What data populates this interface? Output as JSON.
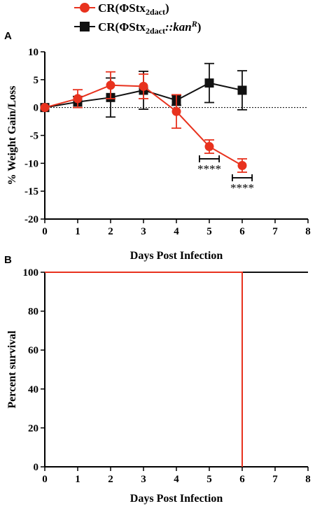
{
  "colors": {
    "red": "#e8321e",
    "black": "#111111"
  },
  "legend": {
    "placement": "top",
    "items": [
      {
        "marker": "circle",
        "color": "#e8321e",
        "prefix": "CR(ΦStx",
        "sub": "2dact",
        "suffix": ")",
        "sup": ""
      },
      {
        "marker": "square",
        "color": "#111111",
        "prefix": "CR(ΦStx",
        "sub": "2dact",
        "suffix": "::kan",
        "sup": "R",
        "close": ")"
      }
    ]
  },
  "chart_data": [
    {
      "panel": "A",
      "type": "line",
      "xlabel": "Days Post Infection",
      "ylabel": "% Weight Gain/Loss",
      "xlim": [
        0,
        8
      ],
      "ylim": [
        -20,
        10
      ],
      "xticks": [
        0,
        1,
        2,
        3,
        4,
        5,
        6,
        7,
        8
      ],
      "yticks": [
        10,
        5,
        0,
        -5,
        -10,
        -15,
        -20
      ],
      "grid": false,
      "reference_line_y": 0,
      "series": [
        {
          "name": "CR(ΦStx2dact)",
          "color": "#e8321e",
          "marker": "circle",
          "x": [
            0,
            1,
            2,
            3,
            4,
            5,
            6
          ],
          "y": [
            0,
            1.6,
            4.0,
            3.8,
            -0.7,
            -7.0,
            -10.4
          ],
          "err": [
            0,
            1.6,
            2.4,
            2.2,
            3.0,
            1.2,
            1.2
          ]
        },
        {
          "name": "CR(ΦStx2dact::kanR)",
          "color": "#111111",
          "marker": "square",
          "x": [
            0,
            1,
            2,
            3,
            4,
            5,
            6
          ],
          "y": [
            0,
            1.0,
            1.8,
            3.1,
            1.3,
            4.4,
            3.1
          ],
          "err": [
            0,
            1.0,
            3.5,
            3.4,
            0.9,
            3.5,
            3.5
          ]
        }
      ],
      "annotations": [
        {
          "x": 5,
          "y": -9.2,
          "text": "****",
          "bracket": [
            4.7,
            5.3
          ]
        },
        {
          "x": 6,
          "y": -12.6,
          "text": "****",
          "bracket": [
            5.7,
            6.3
          ]
        }
      ]
    },
    {
      "panel": "B",
      "type": "line",
      "xlabel": "Days Post Infection",
      "ylabel": "Percent survival",
      "xlim": [
        0,
        8
      ],
      "ylim": [
        0,
        100
      ],
      "xticks": [
        0,
        1,
        2,
        3,
        4,
        5,
        6,
        7,
        8
      ],
      "yticks": [
        100,
        80,
        60,
        40,
        20,
        0
      ],
      "grid": false,
      "series": [
        {
          "name": "CR(ΦStx2dact)",
          "color": "#e8321e",
          "step": true,
          "x": [
            0,
            6,
            6
          ],
          "y": [
            100,
            100,
            0
          ]
        },
        {
          "name": "CR(ΦStx2dact::kanR)",
          "color": "#111111",
          "step": true,
          "x": [
            0,
            8
          ],
          "y": [
            100,
            100
          ]
        }
      ]
    }
  ]
}
